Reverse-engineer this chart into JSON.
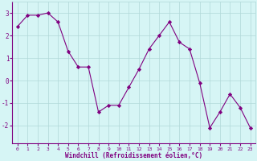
{
  "x": [
    0,
    1,
    2,
    3,
    4,
    5,
    6,
    7,
    8,
    9,
    10,
    11,
    12,
    13,
    14,
    15,
    16,
    17,
    18,
    19,
    20,
    21,
    22,
    23
  ],
  "y": [
    2.4,
    2.9,
    2.9,
    3.0,
    2.6,
    1.3,
    0.6,
    0.6,
    -1.4,
    -1.1,
    -1.1,
    -0.3,
    0.5,
    1.4,
    2.0,
    2.6,
    1.7,
    1.4,
    -0.1,
    -2.1,
    -1.4,
    -0.6,
    -1.2,
    -2.1
  ],
  "line_color": "#800080",
  "marker": "D",
  "bg_color": "#d6f5f5",
  "grid_color": "#b0d8d8",
  "xlabel": "Windchill (Refroidissement éolien,°C)",
  "ylim": [
    -2.8,
    3.5
  ],
  "yticks": [
    -2,
    -1,
    0,
    1,
    2,
    3
  ],
  "xticks": [
    0,
    1,
    2,
    3,
    4,
    5,
    6,
    7,
    8,
    9,
    10,
    11,
    12,
    13,
    14,
    15,
    16,
    17,
    18,
    19,
    20,
    21,
    22,
    23
  ],
  "xlabel_color": "#800080",
  "tick_color": "#800080",
  "spine_color": "#800080",
  "figsize": [
    3.2,
    2.0
  ],
  "dpi": 100
}
